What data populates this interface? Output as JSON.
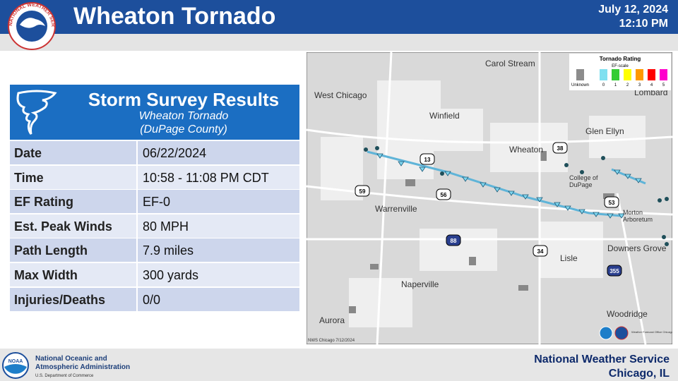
{
  "header": {
    "title": "Wheaton Tornado",
    "date": "July 12, 2024",
    "time": "12:10 PM",
    "logo_text": "NATIONAL WEATHER SERVICE"
  },
  "panel": {
    "title": "Storm Survey Results",
    "subtitle": "Wheaton Tornado",
    "county": "(DuPage County)"
  },
  "table": {
    "rows": [
      [
        "Date",
        "06/22/2024"
      ],
      [
        "Time",
        "10:58 - 11:08 PM CDT"
      ],
      [
        "EF Rating",
        "EF-0"
      ],
      [
        "Est. Peak Winds",
        "80 MPH"
      ],
      [
        "Path Length",
        "7.9 miles"
      ],
      [
        "Max Width",
        "300 yards"
      ],
      [
        "Injuries/Deaths",
        "0/0"
      ]
    ]
  },
  "map": {
    "places": [
      {
        "lines": [
          "Carol Stream"
        ]
      },
      {
        "lines": [
          "West Chicago"
        ]
      },
      {
        "lines": [
          "Winfield"
        ]
      },
      {
        "lines": [
          "Glen Ellyn"
        ]
      },
      {
        "lines": [
          "Lombard"
        ]
      },
      {
        "lines": [
          "Wheaton"
        ]
      },
      {
        "lines": [
          "College of",
          "DuPage"
        ]
      },
      {
        "lines": [
          "Warrenville"
        ]
      },
      {
        "lines": [
          "Morton",
          "Arboretum"
        ]
      },
      {
        "lines": [
          "Downers Grove"
        ]
      },
      {
        "lines": [
          "Lisle"
        ]
      },
      {
        "lines": [
          "Naperville"
        ]
      },
      {
        "lines": [
          "Woodridge"
        ]
      },
      {
        "lines": [
          "Aurora"
        ]
      }
    ],
    "routes": [
      "13",
      "38",
      "59",
      "56",
      "53",
      "88",
      "34",
      "355"
    ],
    "legend": {
      "title": "Tornado Rating",
      "subtitle": "EF-scale",
      "items": [
        {
          "label": "Unknown",
          "color": "#8c8c8c"
        },
        {
          "label": "0",
          "color": "#80e0f0"
        },
        {
          "label": "1",
          "color": "#33cc33"
        },
        {
          "label": "2",
          "color": "#ffff00"
        },
        {
          "label": "3",
          "color": "#ff9900"
        },
        {
          "label": "4",
          "color": "#ff0000"
        },
        {
          "label": "5",
          "color": "#ff00cc"
        }
      ]
    },
    "credit": "NWS Chicago 7/12/2024",
    "office_credit": "Weather Forecast Office Chicago, Illinois"
  },
  "footer": {
    "noaa_line1": "National Oceanic and",
    "noaa_line2": "Atmospheric Administration",
    "noaa_line3": "U.S. Department of Commerce",
    "noaa_logo": "NOAA",
    "nws": "National Weather Service",
    "office": "Chicago, IL"
  }
}
